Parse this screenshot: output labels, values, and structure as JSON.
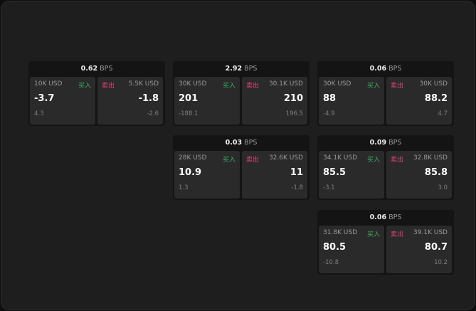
{
  "labels": {
    "buy": "买入",
    "sell": "卖出",
    "unit": "BPS"
  },
  "colors": {
    "buy": "#3dae66",
    "sell": "#e0456f"
  },
  "tiles": [
    {
      "spread": "0.62",
      "buy": {
        "size": "10K USD",
        "price": "-3.7",
        "change": "4.3"
      },
      "sell": {
        "size": "5.5K USD",
        "price": "-1.8",
        "change": "-2.6"
      }
    },
    {
      "spread": "2.92",
      "buy": {
        "size": "30K USD",
        "price": "201",
        "change": "-188.1"
      },
      "sell": {
        "size": "30.1K USD",
        "price": "210",
        "change": "196.5"
      }
    },
    {
      "spread": "0.06",
      "buy": {
        "size": "30K USD",
        "price": "88",
        "change": "-4.9"
      },
      "sell": {
        "size": "30K USD",
        "price": "88.2",
        "change": "4.7"
      }
    },
    {
      "spread": "0.03",
      "buy": {
        "size": "28K USD",
        "price": "10.9",
        "change": "1.3"
      },
      "sell": {
        "size": "32.6K USD",
        "price": "11",
        "change": "-1.8"
      }
    },
    {
      "spread": "0.09",
      "buy": {
        "size": "34.1K USD",
        "price": "85.5",
        "change": "-3.1"
      },
      "sell": {
        "size": "32.8K USD",
        "price": "85.8",
        "change": "3.0"
      }
    },
    {
      "spread": "0.06",
      "buy": {
        "size": "31.8K USD",
        "price": "80.5",
        "change": "-10.8"
      },
      "sell": {
        "size": "39.1K USD",
        "price": "80.7",
        "change": "10.2"
      }
    }
  ]
}
